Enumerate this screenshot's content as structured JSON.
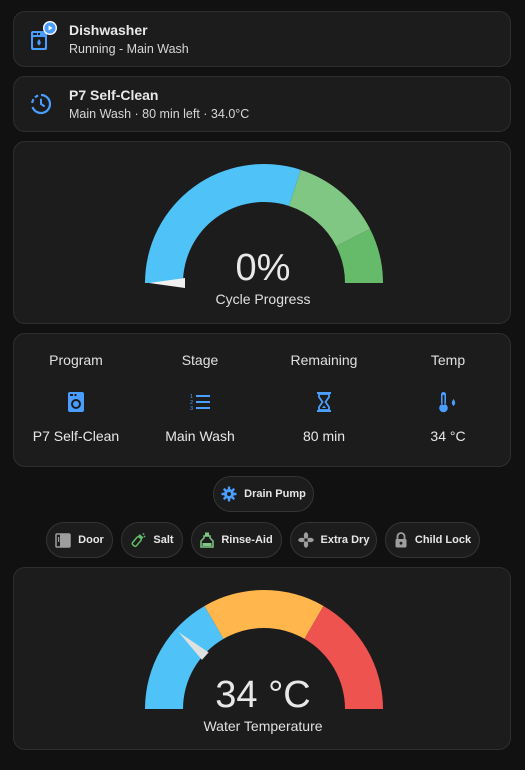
{
  "device_tile": {
    "name": "Dishwasher",
    "state": "Running - Main Wash",
    "icon": "dishwasher-icon",
    "badge_icon": "play-badge-icon",
    "accent": "#4a9eff"
  },
  "program_tile": {
    "name": "P7 Self-Clean",
    "state": "Main Wash · 80 min left · 34.0°C",
    "icon": "timer-progress-icon"
  },
  "progress_gauge": {
    "value_text": "0%",
    "label": "Cycle Progress",
    "value": 0,
    "min": 0,
    "max": 100,
    "segments": [
      {
        "from": 0,
        "to": 60,
        "color": "#4fc3f7"
      },
      {
        "from": 60,
        "to": 85,
        "color": "#81c784"
      },
      {
        "from": 85,
        "to": 100,
        "color": "#66bb6a"
      }
    ]
  },
  "stats": [
    {
      "label": "Program",
      "value": "P7 Self-Clean",
      "icon": "dishwasher-program-icon"
    },
    {
      "label": "Stage",
      "value": "Main Wash",
      "icon": "format-list-numbered-icon"
    },
    {
      "label": "Remaining",
      "value": "80 min",
      "icon": "hourglass-icon"
    },
    {
      "label": "Temp",
      "value": "34 °C",
      "icon": "thermometer-water-icon"
    }
  ],
  "actions": {
    "drain_pump": "Drain Pump",
    "door": "Door",
    "salt": "Salt",
    "rinse_aid": "Rinse-Aid",
    "extra_dry": "Extra Dry",
    "child_lock": "Child Lock"
  },
  "temp_gauge": {
    "value_text": "34 °C",
    "label": "Water Temperature",
    "value": 34,
    "min": 20,
    "max": 80,
    "segments": [
      {
        "from": 20,
        "to": 40,
        "color": "#4fc3f7"
      },
      {
        "from": 40,
        "to": 60,
        "color": "#ffb74d"
      },
      {
        "from": 60,
        "to": 80,
        "color": "#ef5350"
      }
    ]
  },
  "colors": {
    "icon_blue": "#4a9eff",
    "salt_green": "#66bb6a",
    "rinse_green": "#81c784"
  }
}
